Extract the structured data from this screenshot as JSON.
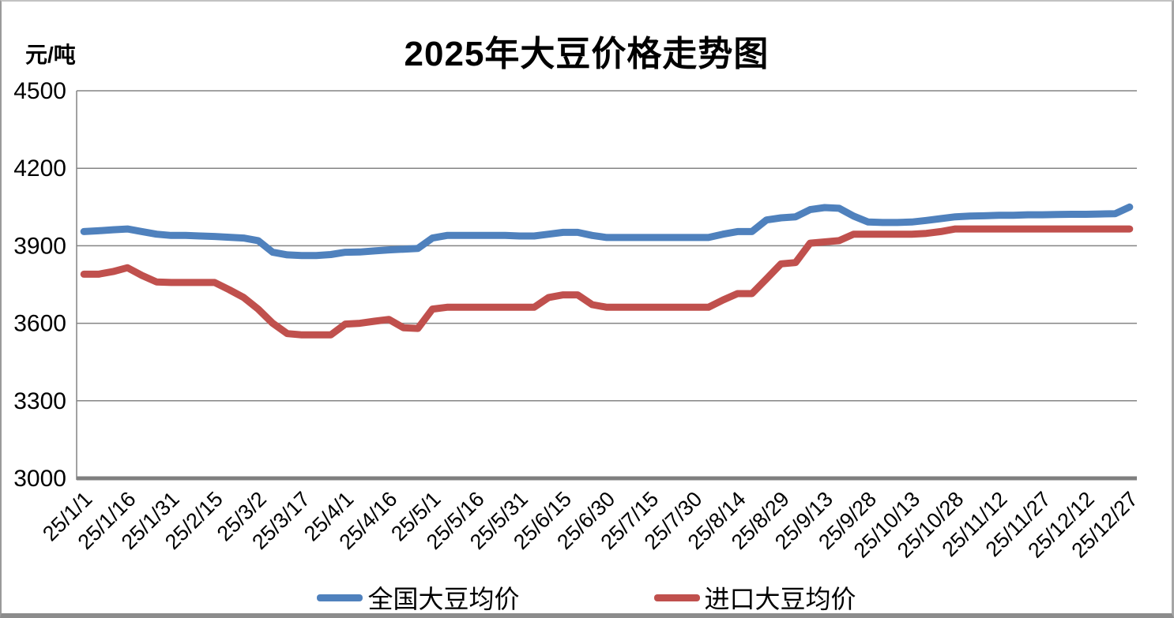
{
  "header": {
    "title": "2025年大豆价格走势图",
    "unit_label": "元/吨"
  },
  "chart_data": {
    "type": "line",
    "title": "2025年大豆价格走势图",
    "ylabel": "元/吨",
    "ylim": [
      3000,
      4500
    ],
    "yticks": [
      3000,
      3300,
      3600,
      3900,
      4200,
      4500
    ],
    "grid": true,
    "legend_position": "bottom",
    "x_label_rotation": 45,
    "x_tick_interval": 3,
    "x": [
      "25/1/1",
      "25/1/6",
      "25/1/11",
      "25/1/16",
      "25/1/21",
      "25/1/26",
      "25/1/31",
      "25/2/5",
      "25/2/10",
      "25/2/15",
      "25/2/20",
      "25/2/25",
      "25/3/2",
      "25/3/7",
      "25/3/12",
      "25/3/17",
      "25/3/22",
      "25/3/27",
      "25/4/1",
      "25/4/6",
      "25/4/11",
      "25/4/16",
      "25/4/21",
      "25/4/26",
      "25/5/1",
      "25/5/6",
      "25/5/11",
      "25/5/16",
      "25/5/21",
      "25/5/26",
      "25/5/31",
      "25/6/5",
      "25/6/10",
      "25/6/15",
      "25/6/20",
      "25/6/25",
      "25/6/30",
      "25/7/5",
      "25/7/10",
      "25/7/15",
      "25/7/20",
      "25/7/25",
      "25/7/30",
      "25/8/4",
      "25/8/9",
      "25/8/14",
      "25/8/19",
      "25/8/24",
      "25/8/29",
      "25/9/3",
      "25/9/8",
      "25/9/13",
      "25/9/18",
      "25/9/23",
      "25/9/28",
      "25/10/3",
      "25/10/8",
      "25/10/13",
      "25/10/18",
      "25/10/23",
      "25/10/28",
      "25/11/2",
      "25/11/7",
      "25/11/12",
      "25/11/17",
      "25/11/22",
      "25/11/27",
      "25/12/2",
      "25/12/7",
      "25/12/12",
      "25/12/17",
      "25/12/22",
      "25/12/27"
    ],
    "x_tick_labels": [
      "25/1/1",
      "25/1/16",
      "25/1/31",
      "25/2/15",
      "25/3/2",
      "25/3/17",
      "25/4/1",
      "25/4/16",
      "25/5/1",
      "25/5/16",
      "25/5/31",
      "25/6/15",
      "25/6/30",
      "25/7/15",
      "25/7/30",
      "25/8/14",
      "25/8/29",
      "25/9/13",
      "25/9/28",
      "25/10/13",
      "25/10/28",
      "25/11/12",
      "25/11/27",
      "25/12/12",
      "25/12/27"
    ],
    "series": [
      {
        "name": "全国大豆均价",
        "color": "#4F81BD",
        "values": [
          3955,
          3958,
          3962,
          3965,
          3955,
          3945,
          3940,
          3940,
          3938,
          3936,
          3933,
          3930,
          3920,
          3875,
          3865,
          3862,
          3862,
          3866,
          3875,
          3876,
          3880,
          3884,
          3887,
          3890,
          3930,
          3940,
          3940,
          3940,
          3940,
          3940,
          3938,
          3938,
          3945,
          3952,
          3952,
          3940,
          3932,
          3932,
          3932,
          3932,
          3932,
          3932,
          3932,
          3932,
          3945,
          3955,
          3955,
          4000,
          4008,
          4012,
          4040,
          4048,
          4045,
          4015,
          3992,
          3990,
          3990,
          3992,
          3998,
          4005,
          4012,
          4015,
          4016,
          4018,
          4018,
          4020,
          4020,
          4021,
          4022,
          4022,
          4023,
          4024,
          4050
        ]
      },
      {
        "name": "进口大豆均价",
        "color": "#C0504D",
        "values": [
          3790,
          3790,
          3800,
          3815,
          3785,
          3760,
          3758,
          3758,
          3758,
          3758,
          3730,
          3700,
          3655,
          3600,
          3560,
          3555,
          3555,
          3555,
          3597,
          3600,
          3608,
          3615,
          3583,
          3580,
          3655,
          3662,
          3662,
          3662,
          3662,
          3662,
          3662,
          3662,
          3700,
          3710,
          3710,
          3672,
          3662,
          3662,
          3662,
          3662,
          3662,
          3662,
          3662,
          3662,
          3690,
          3715,
          3715,
          3772,
          3830,
          3835,
          3910,
          3915,
          3920,
          3945,
          3945,
          3945,
          3945,
          3945,
          3948,
          3955,
          3965,
          3965,
          3965,
          3965,
          3965,
          3965,
          3965,
          3965,
          3965,
          3965,
          3965,
          3965,
          3965
        ]
      }
    ],
    "colors": {
      "gridline": "#848484",
      "axis": "#7f7f7f",
      "text": "#000000"
    }
  }
}
